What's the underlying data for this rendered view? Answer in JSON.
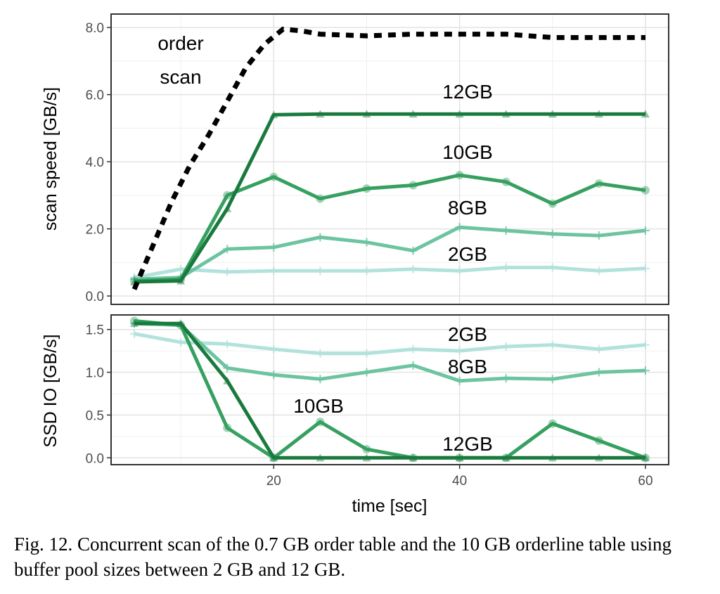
{
  "caption": "Fig. 12.   Concurrent scan of the 0.7 GB order table and the 10 GB orderline table using buffer pool sizes between 2 GB and 12 GB.",
  "colors": {
    "order_scan": "#000000",
    "gb12": "#1a7a3e",
    "gb10": "#35a060",
    "gb8": "#6cc4a0",
    "gb2": "#b2e2dc"
  },
  "chart_data": [
    {
      "type": "line",
      "xlabel": "",
      "ylabel": "scan speed [GB/s]",
      "xlim": [
        2.5,
        62.5
      ],
      "ylim": [
        -0.25,
        8.4
      ],
      "yticks": [
        0.0,
        2.0,
        4.0,
        6.0,
        8.0
      ],
      "ytick_labels": [
        "0.0",
        "2.0",
        "4.0",
        "6.0",
        "8.0"
      ],
      "grid": true,
      "series": [
        {
          "name": "order scan",
          "label_lines": [
            "order",
            "scan"
          ],
          "style": "dashed",
          "color": "#000000",
          "x": [
            5,
            7,
            9,
            11,
            13,
            15,
            17,
            19,
            21,
            23,
            25,
            30,
            35,
            40,
            45,
            50,
            55,
            60
          ],
          "y": [
            0.2,
            1.5,
            2.8,
            3.9,
            4.8,
            5.8,
            6.8,
            7.5,
            7.95,
            7.9,
            7.8,
            7.75,
            7.8,
            7.8,
            7.8,
            7.7,
            7.7,
            7.7
          ]
        },
        {
          "name": "12GB",
          "color": "#1a7a3e",
          "x": [
            5,
            10,
            15,
            20,
            25,
            30,
            35,
            40,
            45,
            50,
            55,
            60
          ],
          "y": [
            0.42,
            0.45,
            2.6,
            5.4,
            5.42,
            5.42,
            5.42,
            5.42,
            5.42,
            5.42,
            5.42,
            5.42
          ]
        },
        {
          "name": "10GB",
          "color": "#35a060",
          "x": [
            5,
            10,
            15,
            20,
            25,
            30,
            35,
            40,
            45,
            50,
            55,
            60
          ],
          "y": [
            0.45,
            0.5,
            3.0,
            3.55,
            2.9,
            3.2,
            3.3,
            3.6,
            3.4,
            2.75,
            3.35,
            3.15
          ]
        },
        {
          "name": "8GB",
          "color": "#6cc4a0",
          "x": [
            5,
            10,
            15,
            20,
            25,
            30,
            35,
            40,
            45,
            50,
            55,
            60
          ],
          "y": [
            0.5,
            0.55,
            1.4,
            1.45,
            1.75,
            1.6,
            1.35,
            2.05,
            1.95,
            1.85,
            1.8,
            1.95
          ]
        },
        {
          "name": "2GB",
          "color": "#b2e2dc",
          "x": [
            5,
            10,
            15,
            20,
            25,
            30,
            35,
            40,
            45,
            50,
            55,
            60
          ],
          "y": [
            0.55,
            0.8,
            0.72,
            0.75,
            0.75,
            0.75,
            0.8,
            0.75,
            0.85,
            0.85,
            0.75,
            0.82
          ]
        }
      ]
    },
    {
      "type": "line",
      "xlabel": "time [sec]",
      "ylabel": "SSD IO [GB/s]",
      "xlim": [
        2.5,
        62.5
      ],
      "ylim": [
        -0.08,
        1.67
      ],
      "xticks": [
        20,
        40,
        60
      ],
      "xtick_labels": [
        "20",
        "40",
        "60"
      ],
      "yticks": [
        0.0,
        0.5,
        1.0,
        1.5
      ],
      "ytick_labels": [
        "0.0",
        "0.5",
        "1.0",
        "1.5"
      ],
      "grid": true,
      "series": [
        {
          "name": "2GB",
          "color": "#b2e2dc",
          "x": [
            5,
            10,
            15,
            20,
            25,
            30,
            35,
            40,
            45,
            50,
            55,
            60
          ],
          "y": [
            1.45,
            1.35,
            1.33,
            1.27,
            1.22,
            1.22,
            1.27,
            1.25,
            1.3,
            1.32,
            1.27,
            1.32
          ]
        },
        {
          "name": "8GB",
          "color": "#6cc4a0",
          "x": [
            5,
            10,
            15,
            20,
            25,
            30,
            35,
            40,
            45,
            50,
            55,
            60
          ],
          "y": [
            1.57,
            1.55,
            1.05,
            0.97,
            0.92,
            1.0,
            1.08,
            0.9,
            0.93,
            0.92,
            1.0,
            1.02
          ]
        },
        {
          "name": "10GB",
          "color": "#35a060",
          "x": [
            5,
            10,
            15,
            20,
            25,
            30,
            35,
            40,
            45,
            50,
            55,
            60
          ],
          "y": [
            1.6,
            1.55,
            0.35,
            0.0,
            0.42,
            0.1,
            0.0,
            0.0,
            0.0,
            0.4,
            0.2,
            0.0
          ]
        },
        {
          "name": "12GB",
          "color": "#1a7a3e",
          "x": [
            5,
            10,
            15,
            20,
            25,
            30,
            35,
            40,
            45,
            50,
            55,
            60
          ],
          "y": [
            1.57,
            1.57,
            0.9,
            0.0,
            0.0,
            0.0,
            0.0,
            0.0,
            0.0,
            0.0,
            0.0,
            0.0
          ]
        }
      ]
    }
  ]
}
